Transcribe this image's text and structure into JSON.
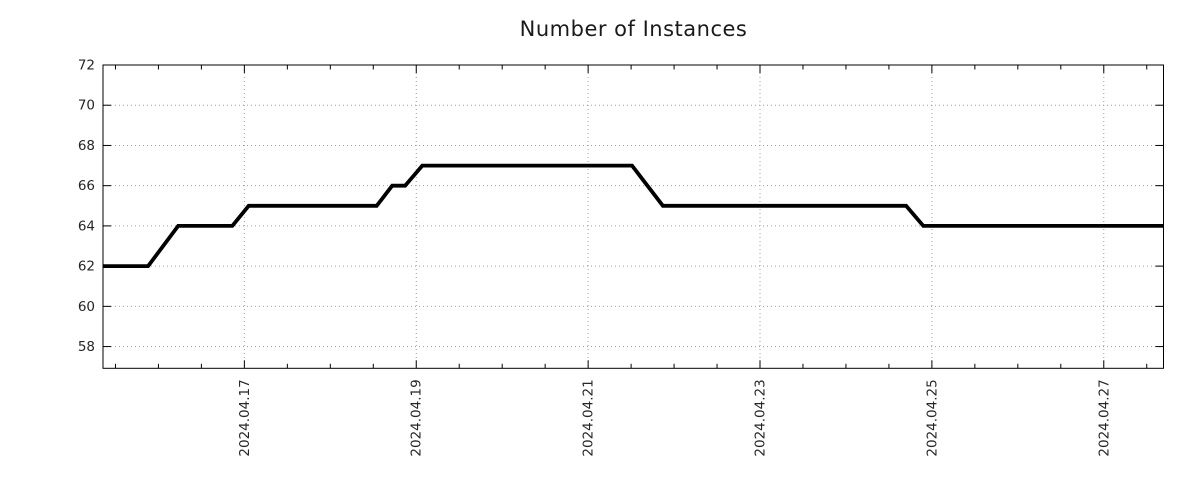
{
  "title": "Number of Instances",
  "chart_data": {
    "type": "line",
    "title": "Number of Instances",
    "xlabel": "",
    "ylabel": "",
    "legend": "none",
    "grid": true,
    "x_axis": {
      "unit": "date, April 2024 (day-of-month fraction)",
      "lim": [
        15.355,
        27.695
      ],
      "major_ticks": [
        17,
        19,
        21,
        23,
        25,
        27
      ],
      "tick_labels": [
        "2024.04.17",
        "2024.04.19",
        "2024.04.21",
        "2024.04.23",
        "2024.04.25",
        "2024.04.27"
      ],
      "minor_tick_step": 0.5
    },
    "y_axis": {
      "lim": [
        56.92,
        72
      ],
      "major_ticks": [
        58,
        60,
        62,
        64,
        66,
        68,
        70,
        72
      ],
      "tick_labels": [
        "58",
        "60",
        "62",
        "64",
        "66",
        "68",
        "70",
        "72"
      ]
    },
    "series": [
      {
        "name": "instances",
        "color": "#000000",
        "line_width": 3.8,
        "points": [
          [
            15.355,
            62
          ],
          [
            15.88,
            62
          ],
          [
            16.23,
            64
          ],
          [
            16.86,
            64
          ],
          [
            17.05,
            65
          ],
          [
            18.54,
            65
          ],
          [
            18.72,
            66
          ],
          [
            18.87,
            66
          ],
          [
            19.07,
            67
          ],
          [
            21.51,
            67
          ],
          [
            21.87,
            65
          ],
          [
            24.7,
            65
          ],
          [
            24.9,
            64
          ],
          [
            27.695,
            64
          ]
        ]
      }
    ]
  },
  "colors": {
    "background": "#ffffff",
    "line": "#000000",
    "grid": "#9e9e9e",
    "axis": "#000000",
    "text": "#262626"
  }
}
